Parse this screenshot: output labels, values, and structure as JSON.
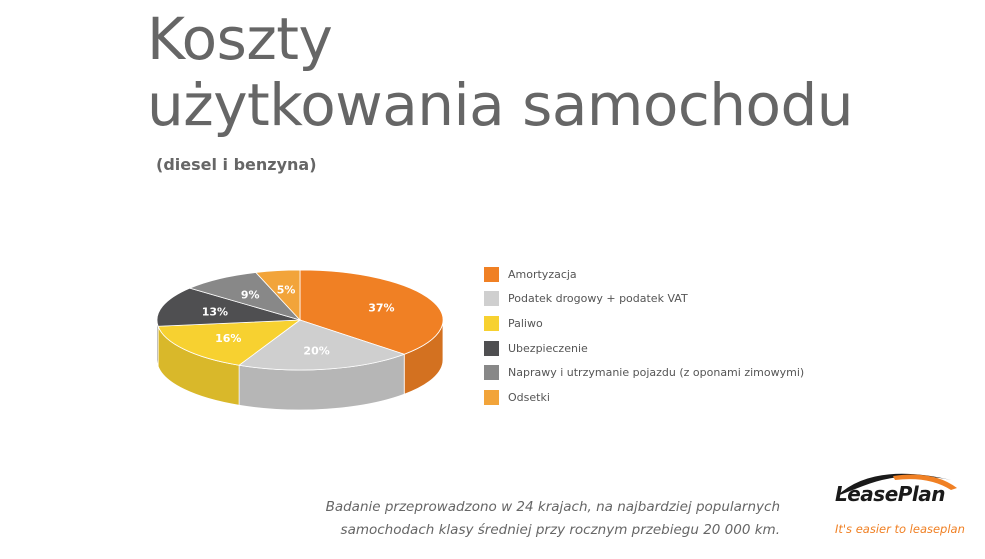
{
  "title_line1": "Koszty",
  "title_line2": "użytkowania samochodu",
  "subtitle": "(diesel i benzyna)",
  "chart_data": {
    "type": "pie",
    "title": "",
    "categories": [
      "Amortyzacja",
      "Podatek drogowy + podatek VAT",
      "Paliwo",
      "Ubezpieczenie",
      "Naprawy i utrzymanie pojazdu (z oponami zimowymi)",
      "Odsetki"
    ],
    "values": [
      37,
      20,
      16,
      13,
      9,
      5
    ],
    "labels": [
      "37%",
      "20%",
      "16%",
      "13%",
      "9%",
      "5%"
    ],
    "colors": [
      "#f08024",
      "#cfcfcf",
      "#f7d130",
      "#4f4f51",
      "#888888",
      "#f2a43a"
    ],
    "legend": "right",
    "style": "3d"
  },
  "footnote_line1": "Badanie przeprowadzono w 24 krajach, na najbardziej popularnych",
  "footnote_line2": "samochodach klasy średniej przy rocznym przebiegu 20 000 km.",
  "logo": {
    "brand": "LeasePlan",
    "tagline": "It's easier to leaseplan",
    "colors": {
      "text": "#1a1a1a",
      "accent": "#f08024"
    }
  }
}
